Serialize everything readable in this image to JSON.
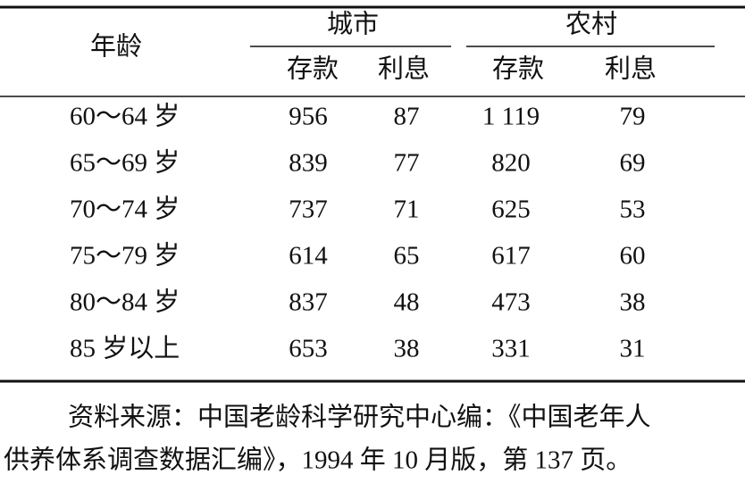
{
  "table": {
    "header": {
      "age": "年龄",
      "groups": [
        "城市",
        "农村"
      ],
      "columns": [
        "存款",
        "利息",
        "存款",
        "利息"
      ]
    },
    "rows": [
      [
        "60～64 岁",
        "956",
        "87",
        "1 119",
        "79"
      ],
      [
        "65～69 岁",
        "839",
        "77",
        "820",
        "69"
      ],
      [
        "70～74 岁",
        "737",
        "71",
        "625",
        "53"
      ],
      [
        "75～79 岁",
        "614",
        "65",
        "617",
        "60"
      ],
      [
        "80～84 岁",
        "837",
        "48",
        "473",
        "38"
      ],
      [
        "85 岁以上",
        "653",
        "38",
        "331",
        "31"
      ]
    ]
  },
  "source": [
    "资料来源：中国老龄科学研究中心编：《中国老年人",
    "供养体系调查数据汇编》，1994 年 10 月版，第 137 页。"
  ]
}
